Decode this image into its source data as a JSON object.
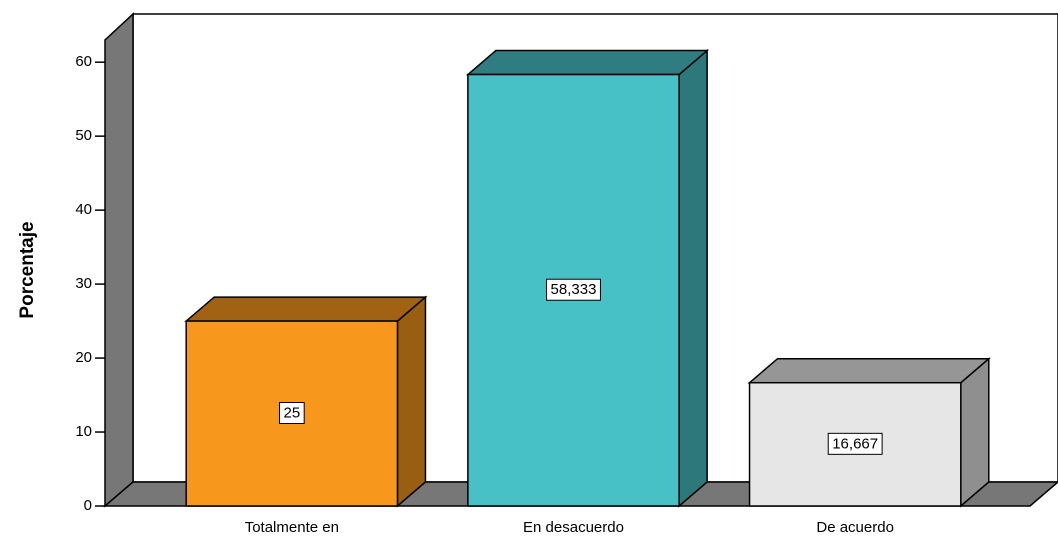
{
  "chart_data": {
    "type": "bar3d",
    "y_label": "Porcentaje",
    "categories": [
      "Totalmente en",
      "En desacuerdo",
      "De acuerdo"
    ],
    "values": [
      25,
      58.333,
      16.667
    ],
    "value_labels": [
      "25",
      "58,333",
      "16,667"
    ],
    "colors": [
      "#f7981d",
      "#48c1c6",
      "#e6e6e6"
    ],
    "ylim": [
      0,
      63
    ],
    "yticks": [
      0,
      10,
      20,
      30,
      40,
      50,
      60
    ]
  }
}
